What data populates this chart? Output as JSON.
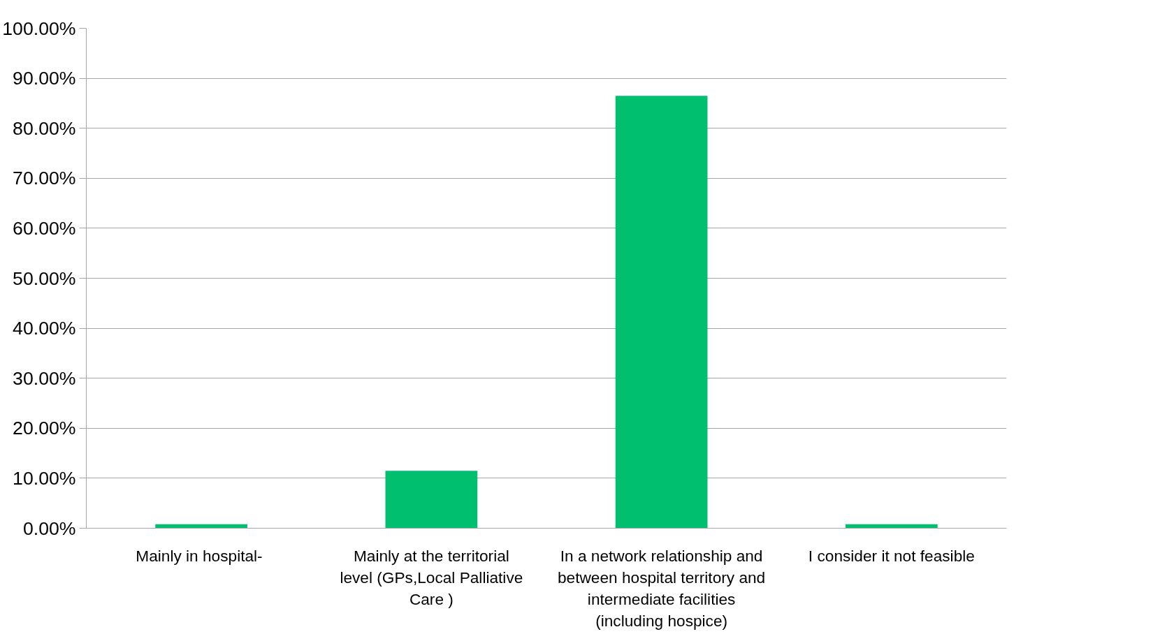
{
  "chart_data": {
    "type": "bar",
    "categories": [
      "Mainly  in hospital-",
      "Mainly at the territorial level (GPs,Local Palliative Care )",
      "In a network relationship and between hospital territory and intermediate facilities (including hospice)",
      "I consider it not feasible"
    ],
    "values": [
      0.8,
      11.5,
      86.5,
      0.8
    ],
    "color": "#00bf6f",
    "ylim": [
      0,
      100
    ],
    "yticks": [
      {
        "value": 0,
        "label": "0.00%"
      },
      {
        "value": 10,
        "label": "10.00%"
      },
      {
        "value": 20,
        "label": "20.00%"
      },
      {
        "value": 30,
        "label": "30.00%"
      },
      {
        "value": 40,
        "label": "40.00%"
      },
      {
        "value": 50,
        "label": "50.00%"
      },
      {
        "value": 60,
        "label": "60.00%"
      },
      {
        "value": 70,
        "label": "70.00%"
      },
      {
        "value": 80,
        "label": "80.00%"
      },
      {
        "value": 90,
        "label": "90.00%"
      },
      {
        "value": 100,
        "label": "100.00%"
      }
    ],
    "grid": "y"
  }
}
